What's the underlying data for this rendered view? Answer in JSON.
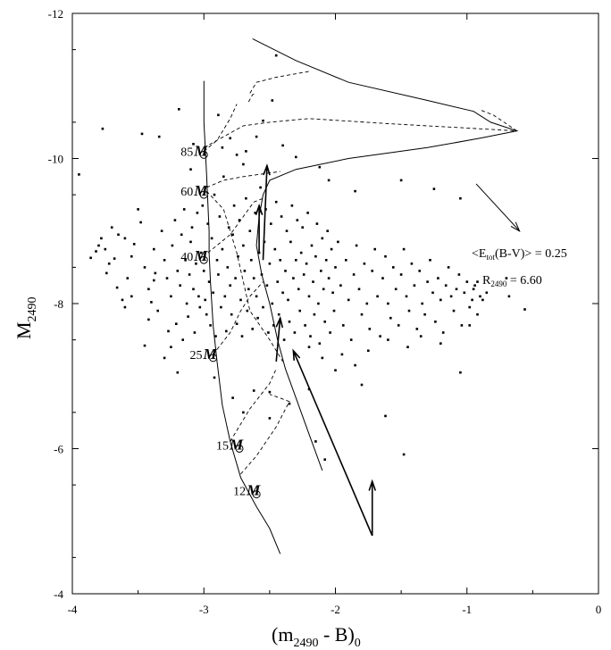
{
  "chart_data": {
    "type": "scatter",
    "title": "",
    "xlabel_main": "(m",
    "xlabel_sub1": "2490",
    "xlabel_mid": " - B)",
    "xlabel_sub2": "0",
    "ylabel_main": "M",
    "ylabel_sub": "2490",
    "xlim": [
      -4,
      0
    ],
    "ylim": [
      -4,
      -12
    ],
    "x_ticks": [
      -4,
      -3,
      -2,
      -1,
      0
    ],
    "x_tick_labels": [
      "-4",
      "-3",
      "-2",
      "-1",
      "0"
    ],
    "y_ticks": [
      -4,
      -6,
      -8,
      -10,
      -12
    ],
    "y_tick_labels": [
      "-4",
      "-6",
      "-8",
      "-10",
      "-12"
    ],
    "reddening_label": "<E",
    "reddening_sub": "tot",
    "reddening_rest": "(B-V)> = 0.25",
    "ratio_label": "R",
    "ratio_sub": "2490",
    "ratio_rest": " = 6.60",
    "mass_labels": [
      {
        "text": "85",
        "x": -3.0,
        "y": -10.1
      },
      {
        "text": "60",
        "x": -3.0,
        "y": -9.55
      },
      {
        "text": "40",
        "x": -3.0,
        "y": -8.65
      },
      {
        "text": "25",
        "x": -2.93,
        "y": -7.3
      },
      {
        "text": "15",
        "x": -2.73,
        "y": -6.05
      },
      {
        "text": "12",
        "x": -2.6,
        "y": -5.42
      }
    ],
    "mass_symbol": "M",
    "sun_symbol": "⊙",
    "tracks_solid": [
      [
        [
          -3.0,
          -11.07
        ],
        [
          -3.0,
          -10.5
        ],
        [
          -2.98,
          -9.8
        ],
        [
          -2.96,
          -9.0
        ],
        [
          -2.96,
          -8.7
        ],
        [
          -2.95,
          -8.3
        ],
        [
          -2.93,
          -7.7
        ],
        [
          -2.9,
          -7.2
        ],
        [
          -2.86,
          -6.6
        ],
        [
          -2.8,
          -6.1
        ],
        [
          -2.72,
          -5.6
        ],
        [
          -2.6,
          -5.2
        ],
        [
          -2.5,
          -4.9
        ],
        [
          -2.42,
          -4.55
        ]
      ],
      [
        [
          -2.63,
          -11.65
        ],
        [
          -2.3,
          -11.35
        ],
        [
          -1.9,
          -11.05
        ],
        [
          -1.3,
          -10.8
        ],
        [
          -0.95,
          -10.65
        ],
        [
          -0.82,
          -10.5
        ],
        [
          -0.62,
          -10.38
        ],
        [
          -0.9,
          -10.28
        ],
        [
          -1.3,
          -10.15
        ],
        [
          -1.9,
          -10.0
        ],
        [
          -2.3,
          -9.85
        ],
        [
          -2.5,
          -9.7
        ],
        [
          -2.55,
          -9.5
        ],
        [
          -2.58,
          -9.2
        ],
        [
          -2.6,
          -8.8
        ],
        [
          -2.56,
          -8.4
        ],
        [
          -2.5,
          -8.0
        ],
        [
          -2.44,
          -7.5
        ],
        [
          -2.38,
          -7.1
        ],
        [
          -2.3,
          -6.7
        ],
        [
          -2.2,
          -6.2
        ],
        [
          -2.1,
          -5.7
        ]
      ]
    ],
    "tracks_dashed": [
      [
        [
          -3.0,
          -10.15
        ],
        [
          -2.85,
          -10.3
        ],
        [
          -2.7,
          -10.45
        ],
        [
          -2.5,
          -10.5
        ],
        [
          -2.2,
          -10.55
        ],
        [
          -1.6,
          -10.48
        ],
        [
          -1.0,
          -10.42
        ],
        [
          -0.62,
          -10.38
        ]
      ],
      [
        [
          -0.62,
          -10.38
        ],
        [
          -0.8,
          -10.6
        ],
        [
          -0.9,
          -10.67
        ]
      ],
      [
        [
          -2.65,
          -10.9
        ],
        [
          -2.6,
          -11.05
        ],
        [
          -2.45,
          -11.12
        ],
        [
          -2.2,
          -11.2
        ]
      ],
      [
        [
          -2.66,
          -10.78
        ],
        [
          -2.63,
          -10.88
        ],
        [
          -2.6,
          -10.9
        ]
      ],
      [
        [
          -2.98,
          -9.6
        ],
        [
          -2.85,
          -9.7
        ],
        [
          -2.7,
          -9.75
        ],
        [
          -2.5,
          -9.8
        ],
        [
          -2.42,
          -9.82
        ]
      ],
      [
        [
          -3.0,
          -10.1
        ],
        [
          -2.9,
          -10.25
        ],
        [
          -2.8,
          -10.55
        ],
        [
          -2.75,
          -10.75
        ]
      ],
      [
        [
          -2.97,
          -8.7
        ],
        [
          -2.8,
          -8.95
        ],
        [
          -2.7,
          -9.2
        ],
        [
          -2.62,
          -9.4
        ],
        [
          -2.55,
          -9.45
        ]
      ],
      [
        [
          -2.98,
          -9.55
        ],
        [
          -2.85,
          -9.3
        ],
        [
          -2.75,
          -8.7
        ],
        [
          -2.7,
          -8.3
        ],
        [
          -2.65,
          -7.9
        ],
        [
          -2.5,
          -7.5
        ],
        [
          -2.4,
          -7.2
        ]
      ],
      [
        [
          -2.93,
          -7.3
        ],
        [
          -2.8,
          -7.6
        ],
        [
          -2.72,
          -7.9
        ],
        [
          -2.65,
          -8.1
        ],
        [
          -2.55,
          -8.3
        ]
      ],
      [
        [
          -2.8,
          -6.1
        ],
        [
          -2.65,
          -6.55
        ],
        [
          -2.5,
          -6.9
        ],
        [
          -2.45,
          -7.1
        ]
      ],
      [
        [
          -2.72,
          -5.65
        ],
        [
          -2.6,
          -5.9
        ],
        [
          -2.45,
          -6.3
        ],
        [
          -2.35,
          -6.65
        ],
        [
          -2.5,
          -6.75
        ]
      ]
    ],
    "arrows": [
      {
        "from": [
          -2.55,
          -8.6
        ],
        "to": [
          -2.52,
          -9.9
        ],
        "weight": "bold"
      },
      {
        "from": [
          -1.72,
          -4.8
        ],
        "to": [
          -2.32,
          -7.35
        ],
        "weight": "bold"
      },
      {
        "from": [
          -1.72,
          -4.8
        ],
        "to": [
          -1.72,
          -5.55
        ],
        "weight": "bold"
      },
      {
        "from": [
          -2.45,
          -7.2
        ],
        "to": [
          -2.42,
          -7.8
        ],
        "weight": "bold"
      },
      {
        "from": [
          -2.58,
          -8.7
        ],
        "to": [
          -2.58,
          -9.35
        ],
        "weight": "bold"
      },
      {
        "from": [
          -0.93,
          -9.65
        ],
        "to": [
          -0.6,
          -9.0
        ],
        "weight": "thin"
      }
    ],
    "points": [
      [
        -3.95,
        -9.78
      ],
      [
        -3.86,
        -8.63
      ],
      [
        -3.82,
        -8.72
      ],
      [
        -3.8,
        -8.8
      ],
      [
        -3.78,
        -8.9
      ],
      [
        -3.77,
        -10.41
      ],
      [
        -3.75,
        -8.75
      ],
      [
        -3.74,
        -8.42
      ],
      [
        -3.72,
        -8.55
      ],
      [
        -3.68,
        -8.62
      ],
      [
        -3.66,
        -8.22
      ],
      [
        -3.62,
        -8.05
      ],
      [
        -3.6,
        -8.9
      ],
      [
        -3.58,
        -8.35
      ],
      [
        -3.55,
        -8.65
      ],
      [
        -3.53,
        -8.82
      ],
      [
        -3.5,
        -9.3
      ],
      [
        -3.48,
        -9.12
      ],
      [
        -3.47,
        -10.34
      ],
      [
        -3.45,
        -8.5
      ],
      [
        -3.42,
        -8.2
      ],
      [
        -3.4,
        -8.02
      ],
      [
        -3.38,
        -8.75
      ],
      [
        -3.37,
        -8.42
      ],
      [
        -3.35,
        -7.9
      ],
      [
        -3.34,
        -10.3
      ],
      [
        -3.32,
        -9.0
      ],
      [
        -3.3,
        -8.6
      ],
      [
        -3.28,
        -8.35
      ],
      [
        -3.27,
        -7.62
      ],
      [
        -3.25,
        -8.1
      ],
      [
        -3.24,
        -8.8
      ],
      [
        -3.22,
        -9.15
      ],
      [
        -3.21,
        -7.72
      ],
      [
        -3.2,
        -8.45
      ],
      [
        -3.19,
        -10.68
      ],
      [
        -3.18,
        -8.25
      ],
      [
        -3.17,
        -8.95
      ],
      [
        -3.16,
        -7.5
      ],
      [
        -3.15,
        -9.3
      ],
      [
        -3.14,
        -8.6
      ],
      [
        -3.13,
        -8.0
      ],
      [
        -3.12,
        -7.82
      ],
      [
        -3.11,
        -8.4
      ],
      [
        -3.1,
        -8.85
      ],
      [
        -3.09,
        -9.05
      ],
      [
        -3.08,
        -8.2
      ],
      [
        -3.07,
        -7.6
      ],
      [
        -3.06,
        -8.55
      ],
      [
        -3.05,
        -9.25
      ],
      [
        -3.04,
        -8.1
      ],
      [
        -3.03,
        -7.95
      ],
      [
        -3.02,
        -8.7
      ],
      [
        -3.01,
        -9.35
      ],
      [
        -3.0,
        -8.45
      ],
      [
        -2.99,
        -8.05
      ],
      [
        -2.98,
        -7.85
      ],
      [
        -2.97,
        -9.1
      ],
      [
        -2.96,
        -8.3
      ],
      [
        -2.95,
        -7.7
      ],
      [
        -2.94,
        -8.9
      ],
      [
        -2.93,
        -8.15
      ],
      [
        -2.92,
        -9.5
      ],
      [
        -2.91,
        -7.55
      ],
      [
        -2.9,
        -8.6
      ],
      [
        -2.89,
        -8.4
      ],
      [
        -2.88,
        -9.2
      ],
      [
        -2.87,
        -7.95
      ],
      [
        -2.86,
        -8.75
      ],
      [
        -2.85,
        -9.75
      ],
      [
        -2.84,
        -8.1
      ],
      [
        -2.83,
        -7.62
      ],
      [
        -2.82,
        -8.5
      ],
      [
        -2.81,
        -9.05
      ],
      [
        -2.8,
        -8.25
      ],
      [
        -2.79,
        -7.85
      ],
      [
        -2.78,
        -8.95
      ],
      [
        -2.77,
        -9.35
      ],
      [
        -2.76,
        -8.35
      ],
      [
        -2.75,
        -7.72
      ],
      [
        -2.74,
        -8.65
      ],
      [
        -2.73,
        -9.15
      ],
      [
        -2.72,
        -8.05
      ],
      [
        -2.71,
        -7.55
      ],
      [
        -2.7,
        -8.8
      ],
      [
        -2.69,
        -8.45
      ],
      [
        -2.68,
        -9.45
      ],
      [
        -2.67,
        -7.9
      ],
      [
        -2.66,
        -8.2
      ],
      [
        -2.65,
        -9.0
      ],
      [
        -2.64,
        -8.6
      ],
      [
        -2.63,
        -7.65
      ],
      [
        -2.62,
        -8.35
      ],
      [
        -2.61,
        -9.25
      ],
      [
        -2.6,
        -8.1
      ],
      [
        -2.59,
        -7.8
      ],
      [
        -2.58,
        -8.7
      ],
      [
        -2.57,
        -9.6
      ],
      [
        -2.56,
        -8.4
      ],
      [
        -2.55,
        -7.95
      ],
      [
        -2.54,
        -8.85
      ],
      [
        -2.53,
        -9.3
      ],
      [
        -2.52,
        -8.25
      ],
      [
        -2.51,
        -7.6
      ],
      [
        -2.5,
        -8.55
      ],
      [
        -2.49,
        -9.1
      ],
      [
        -2.48,
        -8.0
      ],
      [
        -2.47,
        -7.7
      ],
      [
        -2.46,
        -8.75
      ],
      [
        -2.45,
        -9.4
      ],
      [
        -2.44,
        -8.3
      ],
      [
        -2.43,
        -7.85
      ],
      [
        -2.42,
        -8.6
      ],
      [
        -2.41,
        -9.2
      ],
      [
        -2.4,
        -8.15
      ],
      [
        -2.39,
        -7.5
      ],
      [
        -2.38,
        -8.45
      ],
      [
        -2.37,
        -9.0
      ],
      [
        -2.36,
        -8.05
      ],
      [
        -2.35,
        -7.75
      ],
      [
        -2.34,
        -8.85
      ],
      [
        -2.33,
        -9.35
      ],
      [
        -2.32,
        -8.35
      ],
      [
        -2.31,
        -7.6
      ],
      [
        -2.3,
        -8.6
      ],
      [
        -2.29,
        -9.15
      ],
      [
        -2.28,
        -8.2
      ],
      [
        -2.27,
        -7.9
      ],
      [
        -2.26,
        -8.7
      ],
      [
        -2.25,
        -9.05
      ],
      [
        -2.24,
        -8.4
      ],
      [
        -2.23,
        -7.7
      ],
      [
        -2.22,
        -8.55
      ],
      [
        -2.21,
        -9.25
      ],
      [
        -2.2,
        -8.1
      ],
      [
        -2.19,
        -7.55
      ],
      [
        -2.18,
        -8.8
      ],
      [
        -2.17,
        -8.3
      ],
      [
        -2.16,
        -7.85
      ],
      [
        -2.15,
        -8.65
      ],
      [
        -2.14,
        -9.1
      ],
      [
        -2.13,
        -8.0
      ],
      [
        -2.12,
        -7.45
      ],
      [
        -2.11,
        -8.45
      ],
      [
        -2.1,
        -8.9
      ],
      [
        -2.09,
        -8.2
      ],
      [
        -2.08,
        -7.75
      ],
      [
        -2.07,
        -8.6
      ],
      [
        -2.06,
        -9.0
      ],
      [
        -2.05,
        -8.35
      ],
      [
        -2.04,
        -7.6
      ],
      [
        -2.03,
        -8.75
      ],
      [
        -2.02,
        -8.15
      ],
      [
        -2.01,
        -7.9
      ],
      [
        -2.0,
        -8.5
      ],
      [
        -1.98,
        -8.85
      ],
      [
        -1.96,
        -8.25
      ],
      [
        -1.94,
        -7.7
      ],
      [
        -1.92,
        -8.6
      ],
      [
        -1.9,
        -8.05
      ],
      [
        -1.88,
        -7.5
      ],
      [
        -1.86,
        -8.4
      ],
      [
        -1.84,
        -8.8
      ],
      [
        -1.82,
        -8.2
      ],
      [
        -1.8,
        -7.85
      ],
      [
        -1.78,
        -8.55
      ],
      [
        -1.76,
        -8.0
      ],
      [
        -1.74,
        -7.65
      ],
      [
        -1.72,
        -8.45
      ],
      [
        -1.7,
        -8.75
      ],
      [
        -1.68,
        -8.1
      ],
      [
        -1.66,
        -7.55
      ],
      [
        -1.64,
        -8.35
      ],
      [
        -1.62,
        -8.65
      ],
      [
        -1.6,
        -8.0
      ],
      [
        -1.58,
        -7.8
      ],
      [
        -1.56,
        -8.5
      ],
      [
        -1.54,
        -8.2
      ],
      [
        -1.52,
        -7.7
      ],
      [
        -1.5,
        -8.4
      ],
      [
        -1.48,
        -8.75
      ],
      [
        -1.46,
        -8.1
      ],
      [
        -1.44,
        -7.9
      ],
      [
        -1.42,
        -8.55
      ],
      [
        -1.4,
        -8.25
      ],
      [
        -1.38,
        -7.65
      ],
      [
        -1.36,
        -8.45
      ],
      [
        -1.34,
        -8.0
      ],
      [
        -1.32,
        -7.85
      ],
      [
        -1.3,
        -8.3
      ],
      [
        -1.28,
        -8.6
      ],
      [
        -1.26,
        -8.15
      ],
      [
        -1.24,
        -7.75
      ],
      [
        -1.22,
        -8.35
      ],
      [
        -1.2,
        -8.05
      ],
      [
        -1.18,
        -7.6
      ],
      [
        -1.16,
        -8.25
      ],
      [
        -1.14,
        -8.5
      ],
      [
        -1.12,
        -8.1
      ],
      [
        -1.1,
        -7.9
      ],
      [
        -1.08,
        -8.2
      ],
      [
        -1.06,
        -8.4
      ],
      [
        -1.04,
        -7.7
      ],
      [
        -1.02,
        -8.15
      ],
      [
        -1.0,
        -8.3
      ],
      [
        -0.98,
        -7.95
      ],
      [
        -0.96,
        -8.05
      ],
      [
        -0.94,
        -8.25
      ],
      [
        -0.92,
        -7.85
      ],
      [
        -0.9,
        -8.1
      ],
      [
        -0.56,
        -7.92
      ],
      [
        -2.89,
        -10.6
      ],
      [
        -2.86,
        -10.15
      ],
      [
        -2.8,
        -10.28
      ],
      [
        -2.75,
        -10.05
      ],
      [
        -2.7,
        -9.92
      ],
      [
        -2.68,
        -10.1
      ],
      [
        -2.6,
        -10.3
      ],
      [
        -2.55,
        -10.52
      ],
      [
        -2.48,
        -10.8
      ],
      [
        -2.45,
        -11.42
      ],
      [
        -2.4,
        -10.18
      ],
      [
        -2.3,
        -10.02
      ],
      [
        -2.12,
        -9.88
      ],
      [
        -2.05,
        -9.7
      ],
      [
        -1.85,
        -9.55
      ],
      [
        -1.5,
        -9.7
      ],
      [
        -1.25,
        -9.58
      ],
      [
        -1.05,
        -9.45
      ],
      [
        -2.92,
        -6.98
      ],
      [
        -2.78,
        -6.7
      ],
      [
        -2.7,
        -6.5
      ],
      [
        -2.62,
        -6.8
      ],
      [
        -2.5,
        -6.78
      ],
      [
        -2.35,
        -6.62
      ],
      [
        -2.2,
        -6.82
      ],
      [
        -2.0,
        -7.08
      ],
      [
        -1.8,
        -6.88
      ],
      [
        -1.62,
        -6.45
      ],
      [
        -1.48,
        -5.92
      ],
      [
        -1.05,
        -7.05
      ],
      [
        -2.15,
        -6.1
      ],
      [
        -2.08,
        -5.85
      ],
      [
        -2.5,
        -6.42
      ],
      [
        -3.1,
        -9.85
      ],
      [
        -3.08,
        -10.2
      ],
      [
        -3.38,
        -8.32
      ],
      [
        -3.42,
        -7.78
      ],
      [
        -3.45,
        -7.42
      ],
      [
        -3.3,
        -7.25
      ],
      [
        -3.25,
        -7.4
      ],
      [
        -3.2,
        -7.05
      ],
      [
        -3.55,
        -8.1
      ],
      [
        -3.6,
        -7.95
      ],
      [
        -3.65,
        -8.95
      ],
      [
        -3.7,
        -9.05
      ],
      [
        -2.2,
        -7.4
      ],
      [
        -2.1,
        -7.25
      ],
      [
        -1.95,
        -7.3
      ],
      [
        -1.85,
        -7.15
      ],
      [
        -1.75,
        -7.35
      ],
      [
        -1.6,
        -7.5
      ],
      [
        -1.45,
        -7.4
      ],
      [
        -1.35,
        -7.55
      ],
      [
        -1.2,
        -7.45
      ],
      [
        -0.98,
        -7.7
      ],
      [
        -0.95,
        -8.2
      ],
      [
        -0.92,
        -8.3
      ],
      [
        -0.88,
        -8.05
      ],
      [
        -0.85,
        -8.15
      ],
      [
        -0.7,
        -8.35
      ],
      [
        -0.68,
        -8.1
      ]
    ]
  }
}
